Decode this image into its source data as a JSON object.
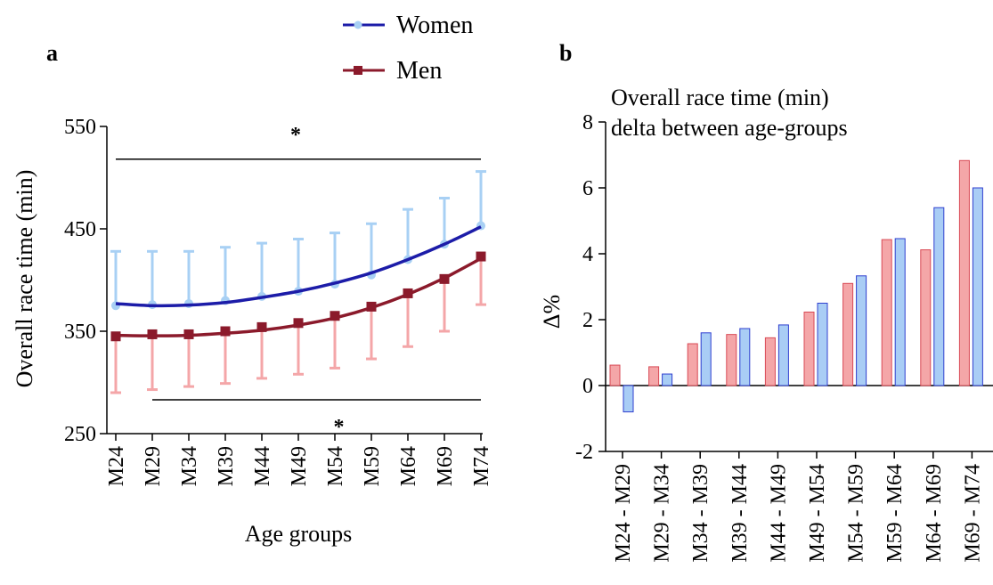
{
  "legend": {
    "women_label": "Women",
    "men_label": "Men"
  },
  "colors": {
    "women_line": "#1c1ca8",
    "women_marker": "#a8d0f4",
    "women_bar_fill": "#a9cdf5",
    "women_bar_stroke": "#2f3fcf",
    "men_line": "#8b1a2b",
    "men_marker": "#8b1a2b",
    "men_bar_fill": "#f4a6a8",
    "men_bar_stroke": "#d94a55",
    "men_errorbar": "#f4a6a8"
  },
  "chart_data": [
    {
      "panel_label": "a",
      "type": "line",
      "xlabel": "Age groups",
      "ylabel": "Overall race time (min)",
      "ylim": [
        250,
        550
      ],
      "yticks": [
        250,
        350,
        450,
        550
      ],
      "categories": [
        "M24",
        "M29",
        "M34",
        "M39",
        "M44",
        "M49",
        "M54",
        "M59",
        "M64",
        "M69",
        "M74"
      ],
      "series": [
        {
          "name": "Women",
          "values": [
            375,
            376,
            377,
            380,
            384,
            389,
            396,
            405,
            420,
            435,
            453
          ],
          "error_upper": [
            428,
            428,
            428,
            432,
            436,
            440,
            446,
            455,
            469,
            480,
            506
          ],
          "fit": [
            377,
            375,
            375.5,
            378,
            383,
            389,
            397,
            407,
            420,
            435,
            452
          ]
        },
        {
          "name": "Men",
          "values": [
            345,
            347,
            347,
            350,
            354,
            358,
            365,
            374,
            387,
            401,
            423
          ],
          "error_lower": [
            290,
            293,
            296,
            299,
            304,
            308,
            314,
            323,
            335,
            350,
            376
          ],
          "fit": [
            346,
            345.5,
            346,
            348,
            351,
            356,
            363,
            373,
            386,
            402,
            421
          ]
        }
      ],
      "significance": [
        {
          "label": "*",
          "span": [
            "M24",
            "M74"
          ],
          "y": 518,
          "position": "above"
        },
        {
          "label": "*",
          "span": [
            "M29",
            "M74"
          ],
          "y": 283,
          "position": "below"
        }
      ]
    },
    {
      "panel_label": "b",
      "type": "bar",
      "title_lines": [
        "Overall race time (min)",
        "delta between age-groups"
      ],
      "ylabel": "Δ%",
      "ylim": [
        -2,
        8
      ],
      "yticks": [
        -2,
        0,
        2,
        4,
        6,
        8
      ],
      "categories": [
        "M24 - M29",
        "M29 - M34",
        "M34 - M39",
        "M39 - M44",
        "M44 - M49",
        "M49 - M54",
        "M54 - M59",
        "M59 - M64",
        "M64 - M69",
        "M69 - M74"
      ],
      "series": [
        {
          "name": "Men",
          "values": [
            0.62,
            0.57,
            1.27,
            1.55,
            1.45,
            2.23,
            3.1,
            4.43,
            4.12,
            6.83
          ]
        },
        {
          "name": "Women",
          "values": [
            -0.8,
            0.35,
            1.6,
            1.73,
            1.84,
            2.5,
            3.33,
            4.46,
            5.4,
            6.0
          ]
        }
      ]
    }
  ]
}
